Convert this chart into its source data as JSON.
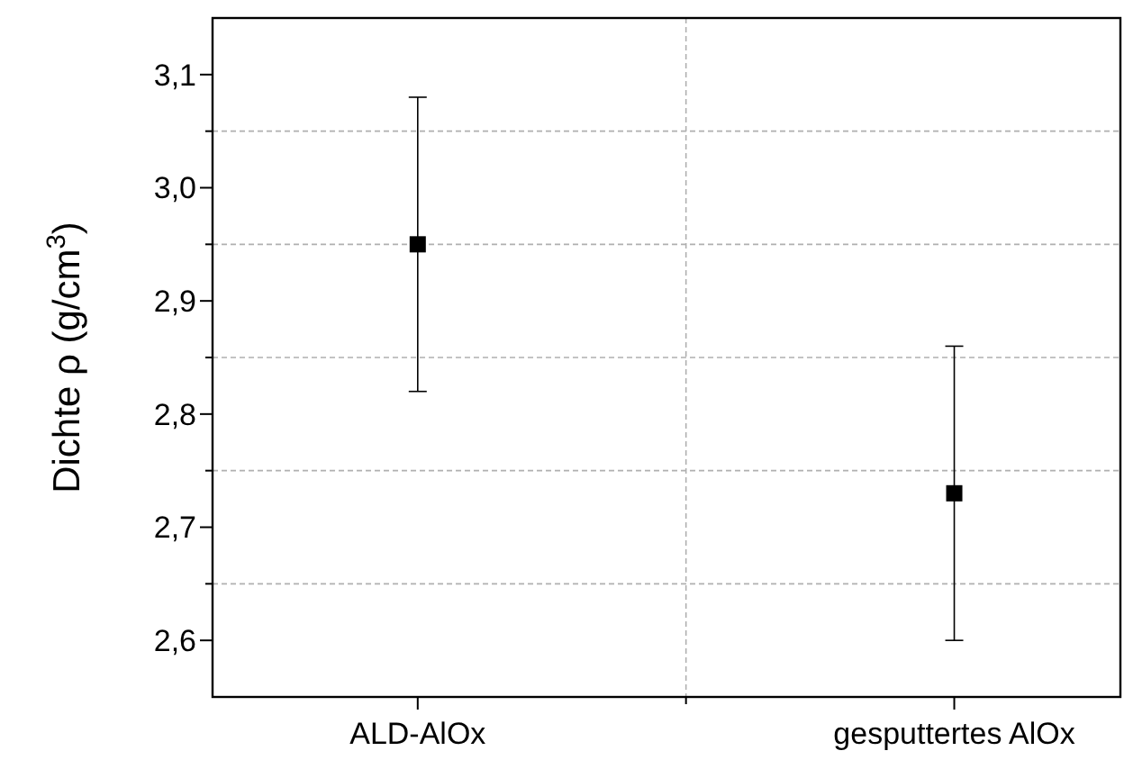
{
  "chart_data": {
    "type": "scatter",
    "ylabel": "Dichte  ρ  (g/cm$^{3}$)",
    "categories": [
      "ALD-AlOx",
      "gesputtertes AlOx"
    ],
    "values": [
      2.95,
      2.73
    ],
    "errors": [
      [
        2.82,
        3.08
      ],
      [
        2.6,
        2.86
      ]
    ],
    "color": "#000000",
    "marker": "square",
    "ylim": [
      2.55,
      3.15
    ],
    "yticks": [
      {
        "value": 2.6,
        "label": "2,6"
      },
      {
        "value": 2.65,
        "label": null
      },
      {
        "value": 2.7,
        "label": "2,7"
      },
      {
        "value": 2.75,
        "label": null
      },
      {
        "value": 2.8,
        "label": "2,8"
      },
      {
        "value": 2.85,
        "label": null
      },
      {
        "value": 2.9,
        "label": "2,9"
      },
      {
        "value": 2.95,
        "label": null
      },
      {
        "value": 3.0,
        "label": "3,0"
      },
      {
        "value": 3.05,
        "label": null
      },
      {
        "value": 3.1,
        "label": "3,1"
      }
    ],
    "grid": "minor"
  }
}
